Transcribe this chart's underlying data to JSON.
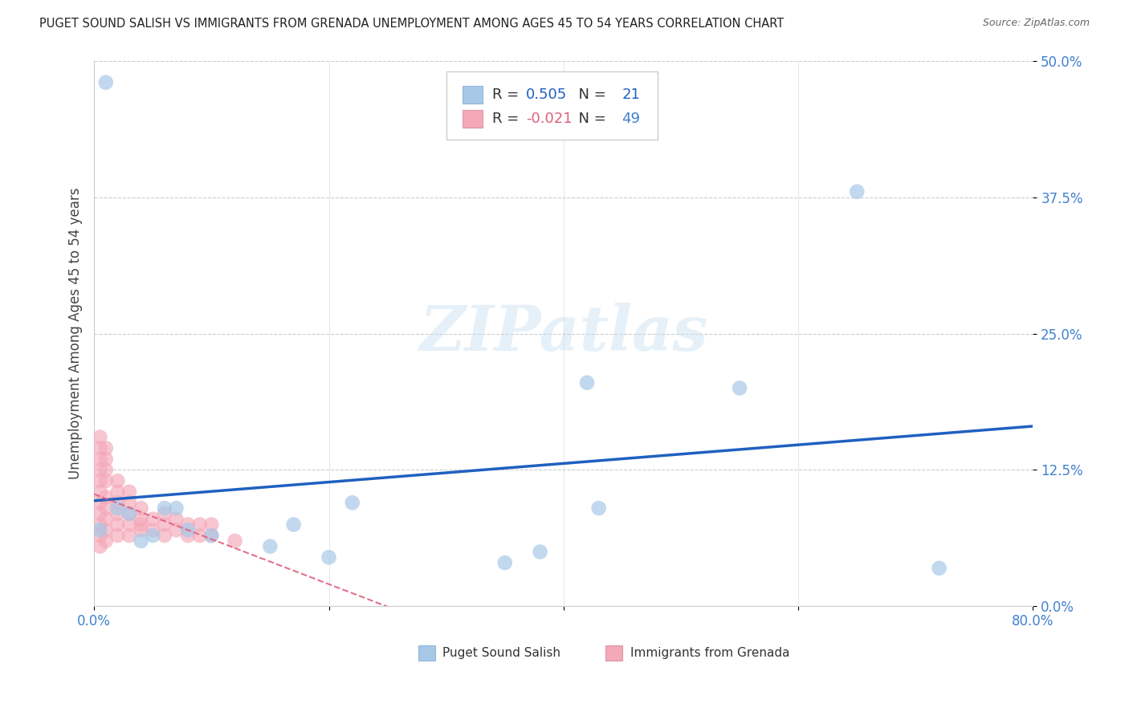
{
  "title": "PUGET SOUND SALISH VS IMMIGRANTS FROM GRENADA UNEMPLOYMENT AMONG AGES 45 TO 54 YEARS CORRELATION CHART",
  "source": "Source: ZipAtlas.com",
  "xlabel_blue": "Puget Sound Salish",
  "xlabel_pink": "Immigrants from Grenada",
  "ylabel": "Unemployment Among Ages 45 to 54 years",
  "xlim": [
    0.0,
    0.8
  ],
  "ylim": [
    0.0,
    0.5
  ],
  "ytick_vals": [
    0.0,
    0.125,
    0.25,
    0.375,
    0.5
  ],
  "ytick_labels": [
    "0.0%",
    "12.5%",
    "25.0%",
    "37.5%",
    "50.0%"
  ],
  "xtick_vals": [
    0.0,
    0.2,
    0.4,
    0.6,
    0.8
  ],
  "xtick_labels": [
    "0.0%",
    "",
    "",
    "",
    "80.0%"
  ],
  "blue_R": 0.505,
  "blue_N": 21,
  "pink_R": -0.021,
  "pink_N": 49,
  "blue_color": "#a8c8e8",
  "pink_color": "#f4a8b8",
  "blue_line_color": "#2060c0",
  "pink_line_color": "#e06080",
  "tick_color": "#4080d0",
  "watermark": "ZIPatlas",
  "blue_points_x": [
    0.01,
    0.02,
    0.03,
    0.04,
    0.05,
    0.06,
    0.07,
    0.08,
    0.1,
    0.15,
    0.17,
    0.2,
    0.22,
    0.35,
    0.38,
    0.42,
    0.43,
    0.55,
    0.65,
    0.72,
    0.005
  ],
  "blue_points_y": [
    0.48,
    0.09,
    0.085,
    0.06,
    0.065,
    0.09,
    0.09,
    0.07,
    0.065,
    0.055,
    0.075,
    0.045,
    0.095,
    0.04,
    0.05,
    0.205,
    0.09,
    0.2,
    0.38,
    0.035,
    0.07
  ],
  "pink_points_x": [
    0.005,
    0.005,
    0.005,
    0.005,
    0.005,
    0.005,
    0.005,
    0.005,
    0.005,
    0.005,
    0.005,
    0.01,
    0.01,
    0.01,
    0.01,
    0.01,
    0.01,
    0.01,
    0.01,
    0.01,
    0.02,
    0.02,
    0.02,
    0.02,
    0.02,
    0.02,
    0.03,
    0.03,
    0.03,
    0.03,
    0.03,
    0.04,
    0.04,
    0.04,
    0.04,
    0.05,
    0.05,
    0.06,
    0.06,
    0.06,
    0.07,
    0.07,
    0.08,
    0.08,
    0.09,
    0.09,
    0.1,
    0.1,
    0.12
  ],
  "pink_points_y": [
    0.055,
    0.065,
    0.075,
    0.085,
    0.095,
    0.105,
    0.115,
    0.125,
    0.135,
    0.145,
    0.155,
    0.06,
    0.07,
    0.08,
    0.09,
    0.1,
    0.115,
    0.125,
    0.135,
    0.145,
    0.065,
    0.075,
    0.085,
    0.095,
    0.105,
    0.115,
    0.065,
    0.075,
    0.085,
    0.095,
    0.105,
    0.07,
    0.08,
    0.09,
    0.075,
    0.07,
    0.08,
    0.065,
    0.075,
    0.085,
    0.07,
    0.08,
    0.065,
    0.075,
    0.065,
    0.075,
    0.065,
    0.075,
    0.06
  ]
}
